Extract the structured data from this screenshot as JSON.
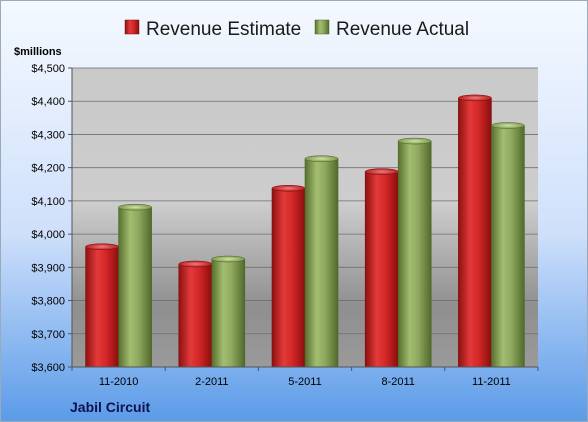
{
  "footer_label": "Jabil Circuit",
  "chart_data": {
    "type": "bar",
    "title": "",
    "xlabel": "",
    "ylabel": "$millions",
    "categories": [
      "11-2010",
      "2-2011",
      "5-2011",
      "8-2011",
      "11-2011"
    ],
    "series": [
      {
        "name": "Revenue Estimate",
        "color": "#d42a2a",
        "values": [
          3962,
          3910,
          4138,
          4188,
          4410
        ]
      },
      {
        "name": "Revenue Actual",
        "color": "#8aa85a",
        "values": [
          4081,
          3925,
          4227,
          4280,
          4327
        ]
      }
    ],
    "ylim": [
      3600,
      4500
    ],
    "yticks": [
      3600,
      3700,
      3800,
      3900,
      4000,
      4100,
      4200,
      4300,
      4400,
      4500
    ],
    "ytick_labels": [
      "$3,600",
      "$3,700",
      "$3,800",
      "$3,900",
      "$4,000",
      "$4,100",
      "$4,200",
      "$4,300",
      "$4,400",
      "$4,500"
    ],
    "grid": true,
    "legend": "top"
  }
}
